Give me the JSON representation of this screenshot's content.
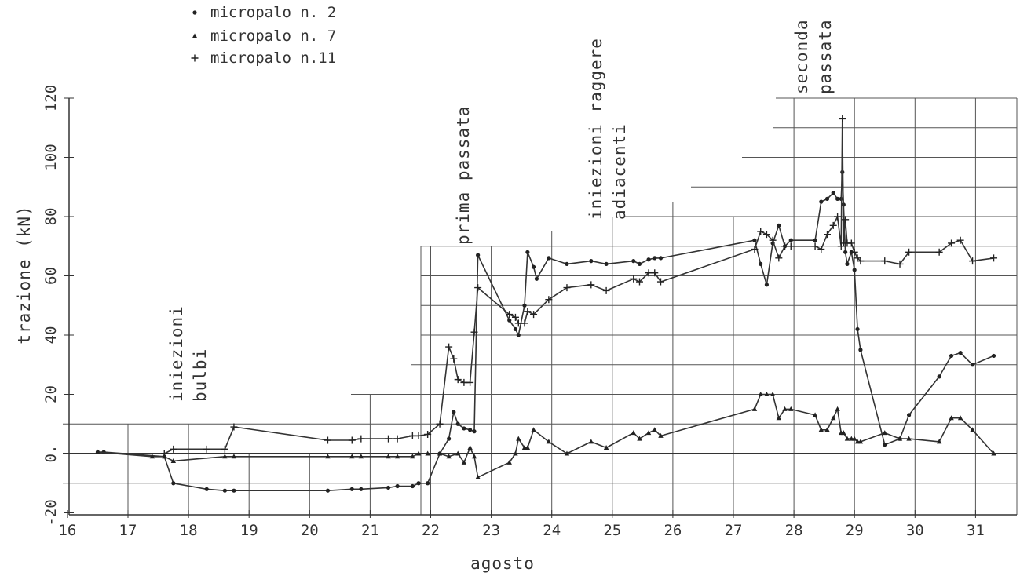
{
  "chart_data": {
    "type": "line",
    "xlabel": "agosto",
    "ylabel": "trazione (kN)",
    "xlim": [
      15.8,
      31.9
    ],
    "ylim": [
      -20,
      120
    ],
    "x_ticks": [
      16,
      17,
      18,
      19,
      20,
      21,
      22,
      23,
      24,
      25,
      26,
      27,
      28,
      29,
      30,
      31
    ],
    "y_ticks": [
      120,
      100,
      80,
      60,
      40,
      20,
      0,
      -20
    ],
    "y_tick_labels": [
      "120",
      "100",
      "80",
      "60",
      "40",
      "20",
      "0.",
      "-20"
    ],
    "grid": true,
    "legend": "top-left",
    "series": [
      {
        "name": "micropalo n. 2",
        "marker": "dot",
        "x": [
          16.5,
          16.6,
          17.6,
          17.75,
          18.3,
          18.6,
          18.75,
          20.3,
          20.7,
          20.85,
          21.3,
          21.45,
          21.7,
          21.8,
          21.95,
          22.15,
          22.3,
          22.38,
          22.45,
          22.55,
          22.65,
          22.72,
          22.78,
          23.3,
          23.4,
          23.45,
          23.55,
          23.6,
          23.7,
          23.75,
          23.95,
          24.25,
          24.65,
          24.9,
          25.35,
          25.45,
          25.6,
          25.7,
          25.8,
          27.35,
          27.45,
          27.55,
          27.65,
          27.75,
          27.85,
          27.95,
          28.35,
          28.45,
          28.55,
          28.65,
          28.72,
          28.78,
          28.8,
          28.82,
          28.85,
          28.88,
          28.95,
          29.0,
          29.05,
          29.1,
          29.5,
          29.75,
          29.9,
          30.4,
          30.6,
          30.75,
          30.95,
          31.3
        ],
        "y": [
          0.5,
          0.5,
          -1,
          -10,
          -12,
          -12.5,
          -12.5,
          -12.5,
          -12,
          -12,
          -11.5,
          -11,
          -11,
          -10,
          -10,
          0,
          5,
          14,
          10,
          8.5,
          8,
          7.5,
          67,
          45,
          42,
          40,
          50,
          68,
          63,
          59,
          66,
          64,
          65,
          64,
          65,
          64,
          65.5,
          66,
          66,
          72,
          64,
          57,
          71,
          77,
          70,
          72,
          72,
          85,
          86,
          88,
          86,
          86,
          95,
          84,
          68,
          64,
          68,
          62,
          42,
          35,
          3,
          5,
          13,
          26,
          33,
          34,
          30,
          33
        ]
      },
      {
        "name": "micropalo n. 7",
        "marker": "triangle",
        "x": [
          16.5,
          17.4,
          17.6,
          17.75,
          18.6,
          18.75,
          20.3,
          20.7,
          20.85,
          21.3,
          21.45,
          21.7,
          21.8,
          21.95,
          22.15,
          22.3,
          22.45,
          22.55,
          22.65,
          22.72,
          22.78,
          23.3,
          23.4,
          23.45,
          23.55,
          23.6,
          23.7,
          23.95,
          24.25,
          24.65,
          24.9,
          25.35,
          25.45,
          25.6,
          25.7,
          25.8,
          27.35,
          27.45,
          27.55,
          27.65,
          27.75,
          27.85,
          27.95,
          28.35,
          28.45,
          28.55,
          28.65,
          28.72,
          28.78,
          28.82,
          28.88,
          28.95,
          29.0,
          29.05,
          29.1,
          29.5,
          29.75,
          29.9,
          30.4,
          30.6,
          30.75,
          30.95,
          31.3
        ],
        "y": [
          0.5,
          -1,
          -1,
          -2.5,
          -1,
          -1,
          -1,
          -1,
          -1,
          -1,
          -1,
          -1,
          0,
          0,
          0,
          -1,
          0,
          -3,
          2,
          -1,
          -8,
          -3,
          0,
          5,
          2,
          2,
          8,
          4,
          0,
          4,
          2,
          7,
          5,
          7,
          8,
          6,
          15,
          20,
          20,
          20,
          12,
          15,
          15,
          13,
          8,
          8,
          12,
          15,
          7,
          7,
          5,
          5,
          5,
          4,
          4,
          7,
          5,
          5,
          4,
          12,
          12,
          8,
          0
        ]
      },
      {
        "name": "micropalo n.11",
        "marker": "plus",
        "x": [
          17.6,
          17.75,
          18.3,
          18.6,
          18.75,
          20.3,
          20.7,
          20.85,
          21.3,
          21.45,
          21.7,
          21.8,
          21.95,
          22.15,
          22.3,
          22.38,
          22.45,
          22.55,
          22.65,
          22.72,
          22.78,
          23.3,
          23.4,
          23.45,
          23.55,
          23.6,
          23.7,
          23.95,
          24.25,
          24.65,
          24.9,
          25.35,
          25.45,
          25.6,
          25.7,
          25.8,
          27.35,
          27.45,
          27.55,
          27.65,
          27.75,
          27.85,
          27.95,
          28.35,
          28.45,
          28.55,
          28.65,
          28.72,
          28.78,
          28.8,
          28.82,
          28.85,
          28.88,
          28.95,
          29.0,
          29.05,
          29.1,
          29.5,
          29.75,
          29.9,
          30.4,
          30.6,
          30.75,
          30.95,
          31.3
        ],
        "y": [
          0,
          1.5,
          1.5,
          1.5,
          9,
          4.5,
          4.5,
          5,
          5,
          5,
          6,
          6,
          6.5,
          10,
          36,
          32,
          25,
          24,
          24,
          41,
          56,
          47,
          46,
          44,
          44,
          48,
          47,
          52,
          56,
          57,
          55,
          59,
          58,
          61,
          61,
          58,
          69,
          75,
          74,
          72,
          66,
          70,
          70,
          70,
          69,
          74,
          77,
          80,
          70,
          113,
          71,
          79,
          71,
          71,
          68,
          66,
          65,
          65,
          64,
          68,
          68,
          71,
          72,
          65,
          66
        ]
      }
    ],
    "annotations": [
      {
        "lines": [
          "iniezioni",
          "bulbi"
        ],
        "x": 18.1
      },
      {
        "lines": [
          "prima passata"
        ],
        "x": 22.85
      },
      {
        "lines": [
          "iniezioni raggere",
          "adiacenti"
        ],
        "x": 25.2
      },
      {
        "lines": [
          "seconda",
          "passata"
        ],
        "x": 28.5
      }
    ]
  }
}
